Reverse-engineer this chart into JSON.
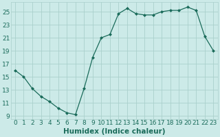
{
  "x": [
    0,
    1,
    2,
    3,
    4,
    5,
    6,
    7,
    8,
    9,
    10,
    11,
    12,
    13,
    14,
    15,
    16,
    17,
    18,
    19,
    20,
    21,
    22,
    23
  ],
  "y": [
    16,
    15,
    13.2,
    12,
    11.2,
    10.2,
    9.5,
    9.2,
    13.2,
    18,
    21,
    21.5,
    24.7,
    25.5,
    24.7,
    24.5,
    24.5,
    25.0,
    25.2,
    25.2,
    25.7,
    25.2,
    21.2,
    19.0
  ],
  "line_color": "#1a6b5a",
  "marker": "D",
  "marker_size": 2.0,
  "bg_color": "#cceae8",
  "grid_color": "#aad0cc",
  "xlabel": "Humidex (Indice chaleur)",
  "ylabel_ticks": [
    9,
    11,
    13,
    15,
    17,
    19,
    21,
    23,
    25
  ],
  "xlim": [
    -0.5,
    23.5
  ],
  "ylim": [
    8.5,
    26.5
  ],
  "xtick_labels": [
    "0",
    "1",
    "2",
    "3",
    "4",
    "5",
    "6",
    "7",
    "8",
    "9",
    "10",
    "11",
    "12",
    "13",
    "14",
    "15",
    "16",
    "17",
    "18",
    "19",
    "20",
    "21",
    "22",
    "23"
  ],
  "tick_color": "#1a6b5a",
  "label_fontsize": 7.5,
  "tick_fontsize": 6.5
}
